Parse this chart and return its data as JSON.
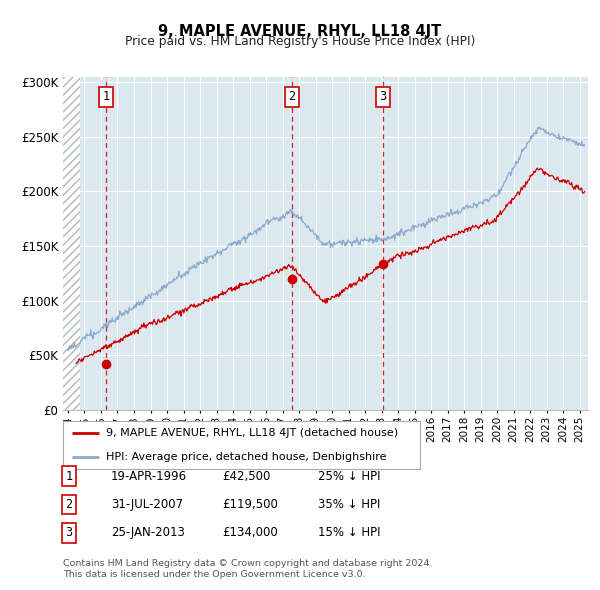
{
  "title": "9, MAPLE AVENUE, RHYL, LL18 4JT",
  "subtitle": "Price paid vs. HM Land Registry's House Price Index (HPI)",
  "xlim_start": 1993.7,
  "xlim_end": 2025.5,
  "ylim": [
    0,
    305000
  ],
  "yticks": [
    0,
    50000,
    100000,
    150000,
    200000,
    250000,
    300000
  ],
  "ytick_labels": [
    "£0",
    "£50K",
    "£100K",
    "£150K",
    "£200K",
    "£250K",
    "£300K"
  ],
  "sale_dates": [
    1996.3,
    2007.58,
    2013.07
  ],
  "sale_prices": [
    42500,
    119500,
    134000
  ],
  "sale_labels": [
    "1",
    "2",
    "3"
  ],
  "sale_info": [
    {
      "num": "1",
      "date": "19-APR-1996",
      "price": "£42,500",
      "hpi": "25% ↓ HPI"
    },
    {
      "num": "2",
      "date": "31-JUL-2007",
      "price": "£119,500",
      "hpi": "35% ↓ HPI"
    },
    {
      "num": "3",
      "date": "25-JAN-2013",
      "price": "£134,000",
      "hpi": "15% ↓ HPI"
    }
  ],
  "legend_line1": "9, MAPLE AVENUE, RHYL, LL18 4JT (detached house)",
  "legend_line2": "HPI: Average price, detached house, Denbighshire",
  "footer1": "Contains HM Land Registry data © Crown copyright and database right 2024.",
  "footer2": "This data is licensed under the Open Government Licence v3.0.",
  "red_color": "#cc0000",
  "blue_color": "#88aacc",
  "plot_bg": "#dce8f0",
  "grid_color": "#c8d8e8",
  "hatch_end": 1994.75
}
